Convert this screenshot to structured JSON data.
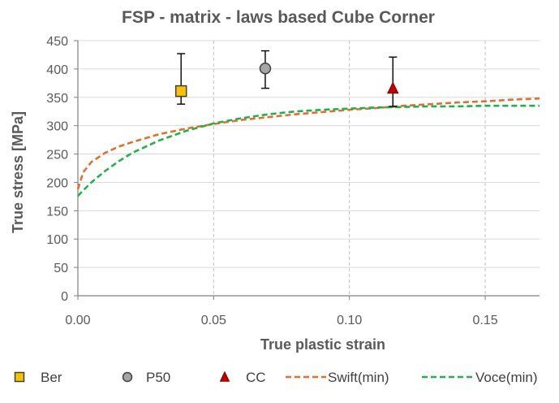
{
  "chart_data": {
    "type": "scatter",
    "title": "FSP - matrix - laws based Cube Corner",
    "xlabel": "True plastic strain",
    "ylabel": "True stress [MPa]",
    "xlim": [
      0,
      0.17
    ],
    "ylim": [
      0,
      450
    ],
    "x_ticks": [
      "0.00",
      "0.05",
      "0.10",
      "0.15"
    ],
    "x_tick_values": [
      0,
      0.05,
      0.1,
      0.15
    ],
    "y_ticks": [
      "0",
      "50",
      "100",
      "150",
      "200",
      "250",
      "300",
      "350",
      "400",
      "450"
    ],
    "y_tick_values": [
      0,
      50,
      100,
      150,
      200,
      250,
      300,
      350,
      400,
      450
    ],
    "grid": {
      "vertical": "dashed",
      "horizontal": "solid"
    },
    "legend_position": "bottom",
    "points": [
      {
        "name": "Ber",
        "x": 0.038,
        "y": 361,
        "err_low": 338,
        "err_high": 427,
        "marker": "square",
        "color": "#FFC000"
      },
      {
        "name": "P50",
        "x": 0.069,
        "y": 401,
        "err_low": 366,
        "err_high": 432,
        "marker": "circle",
        "color": "#A5A5A5"
      },
      {
        "name": "CC",
        "x": 0.116,
        "y": 366,
        "err_low": 334,
        "err_high": 421,
        "marker": "triangle",
        "color": "#C00000"
      }
    ],
    "curves": [
      {
        "name": "Swift(min)",
        "color": "#E07030",
        "style": "dashed",
        "x": [
          0,
          0.002,
          0.005,
          0.01,
          0.015,
          0.02,
          0.03,
          0.04,
          0.05,
          0.06,
          0.07,
          0.08,
          0.09,
          0.1,
          0.11,
          0.12,
          0.13,
          0.14,
          0.15,
          0.16,
          0.17
        ],
        "y": [
          188,
          218,
          236,
          252,
          263,
          271,
          285,
          295,
          303,
          310,
          315,
          320,
          324,
          328,
          331,
          335,
          338,
          341,
          343,
          346,
          348
        ]
      },
      {
        "name": "Voce(min)",
        "color": "#22B04A",
        "style": "dashed",
        "x": [
          0,
          0.002,
          0.005,
          0.01,
          0.015,
          0.02,
          0.03,
          0.04,
          0.05,
          0.06,
          0.07,
          0.08,
          0.09,
          0.1,
          0.11,
          0.12,
          0.13,
          0.14,
          0.15,
          0.16,
          0.17
        ],
        "y": [
          176,
          186,
          200,
          220,
          237,
          252,
          274,
          291,
          304,
          313,
          320,
          325,
          328,
          330,
          332,
          333,
          334,
          334,
          335,
          335,
          335
        ]
      }
    ],
    "legend": [
      {
        "label": "Ber",
        "marker": "square",
        "color": "#FFC000"
      },
      {
        "label": "P50",
        "marker": "circle",
        "color": "#A5A5A5"
      },
      {
        "label": "CC",
        "marker": "triangle",
        "color": "#C00000"
      },
      {
        "label": "Swift(min)",
        "marker": "dashed-line",
        "color": "#E07030"
      },
      {
        "label": "Voce(min)",
        "marker": "dashed-line",
        "color": "#22B04A"
      }
    ]
  }
}
